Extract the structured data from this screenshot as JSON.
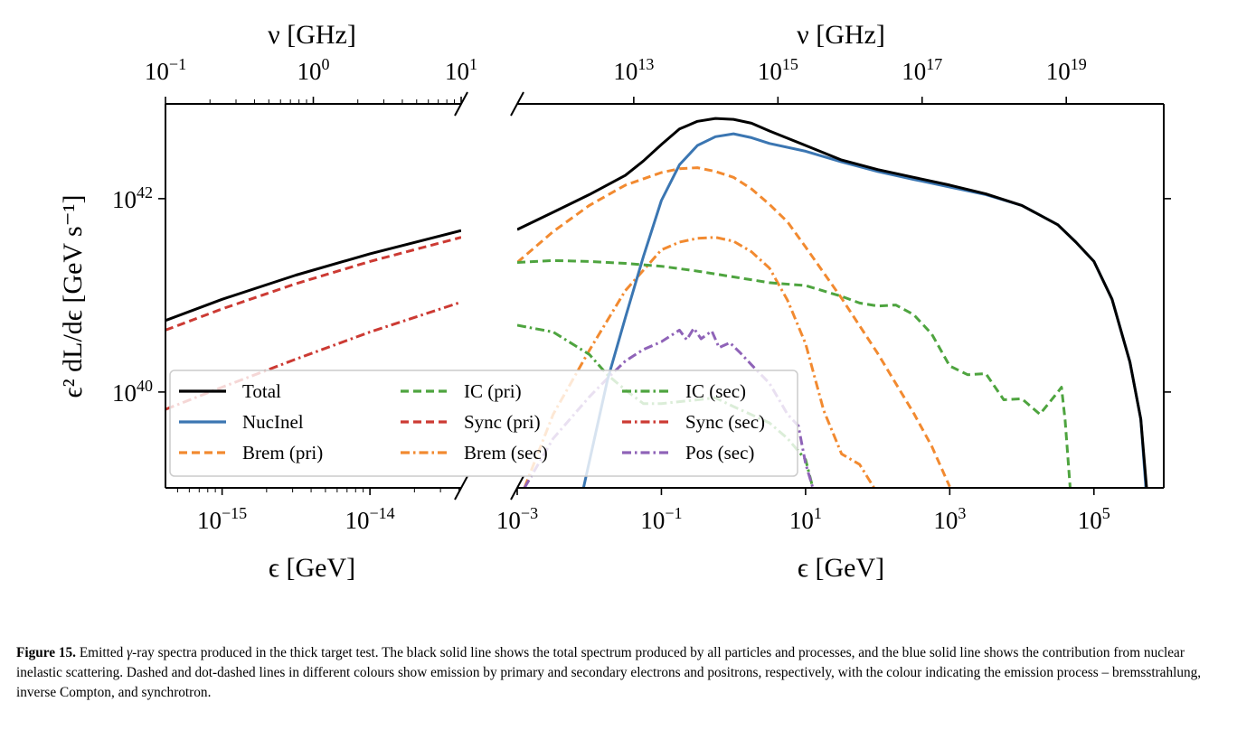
{
  "chart_data": {
    "type": "line",
    "xscale": "log",
    "yscale": "log",
    "broken_x_axis": true,
    "grid": false,
    "legend_placement": "lower-left",
    "xlabel": "ϵ [GeV]",
    "ylabel": "ϵ² dL/dϵ [GeV s⁻¹]",
    "top_xlabel": "ν [GHz]",
    "ylim": [
      1.02e+39,
      9.55e+42
    ],
    "yticks": [
      {
        "value": 1e+40,
        "label": {
          "base": "10",
          "exp": "40"
        }
      },
      {
        "value": 1e+42,
        "label": {
          "base": "10",
          "exp": "42"
        }
      }
    ],
    "legend": [
      {
        "name": "Total",
        "color": "#000000",
        "style": "solid"
      },
      {
        "name": "NucInel",
        "color": "#3b76b2",
        "style": "solid"
      },
      {
        "name": "Brem (pri)",
        "color": "#f28a30",
        "style": "dashed"
      },
      {
        "name": "IC (pri)",
        "color": "#4ea43f",
        "style": "dashed"
      },
      {
        "name": "Sync (pri)",
        "color": "#cc3a33",
        "style": "dashed"
      },
      {
        "name": "Brem (sec)",
        "color": "#f28a30",
        "style": "dashdot"
      },
      {
        "name": "IC (sec)",
        "color": "#4ea43f",
        "style": "dashdot"
      },
      {
        "name": "Sync (sec)",
        "color": "#cc3a33",
        "style": "dashdot"
      },
      {
        "name": "Pos (sec)",
        "color": "#8f63b8",
        "style": "dashdot"
      }
    ],
    "panels": [
      {
        "xlim": [
          4.14e-16,
          4.14e-14
        ],
        "top_xlim": [
          0.1,
          10
        ],
        "xticks": [
          {
            "value": 1e-15,
            "label": {
              "base": "10",
              "exp": "−15"
            }
          },
          {
            "value": 1e-14,
            "label": {
              "base": "10",
              "exp": "−14"
            }
          }
        ],
        "top_xticks": [
          {
            "value": 0.1,
            "label": {
              "base": "10",
              "exp": "−1"
            }
          },
          {
            "value": 1,
            "label": {
              "base": "10",
              "exp": "0"
            }
          },
          {
            "value": 10,
            "label": {
              "base": "10",
              "exp": "1"
            }
          }
        ],
        "series": [
          {
            "name": "Total",
            "x": [
              4.14e-16,
              1e-15,
              3.16e-15,
              1e-14,
              4.14e-14
            ],
            "y": [
              5.5e+40,
              9.1e+40,
              1.62e+41,
              2.69e+41,
              4.68e+41
            ]
          },
          {
            "name": "Sync (pri)",
            "x": [
              4.14e-16,
              1e-15,
              3.16e-15,
              1e-14,
              4.14e-14
            ],
            "y": [
              4.37e+40,
              7.24e+40,
              1.32e+41,
              2.24e+41,
              3.98e+41
            ]
          },
          {
            "name": "Sync (sec)",
            "x": [
              4.14e-16,
              1e-15,
              3.16e-15,
              1e-14,
              4.14e-14
            ],
            "y": [
              6.61e+39,
              1.12e+40,
              2.19e+40,
              4.17e+40,
              8.51e+40
            ]
          }
        ]
      },
      {
        "xlim": [
          0.001,
          930000.0
        ],
        "top_xlim": [
          241800000000.0,
          2.25e+20
        ],
        "xticks": [
          {
            "value": 0.001,
            "label": {
              "base": "10",
              "exp": "−3"
            }
          },
          {
            "value": 0.1,
            "label": {
              "base": "10",
              "exp": "−1"
            }
          },
          {
            "value": 10.0,
            "label": {
              "base": "10",
              "exp": "1"
            }
          },
          {
            "value": 1000.0,
            "label": {
              "base": "10",
              "exp": "3"
            }
          },
          {
            "value": 100000.0,
            "label": {
              "base": "10",
              "exp": "5"
            }
          }
        ],
        "top_xticks": [
          {
            "value": 10000000000000.0,
            "label": {
              "base": "10",
              "exp": "13"
            }
          },
          {
            "value": 1000000000000000.0,
            "label": {
              "base": "10",
              "exp": "15"
            }
          },
          {
            "value": 1e+17,
            "label": {
              "base": "10",
              "exp": "17"
            }
          },
          {
            "value": 1e+19,
            "label": {
              "base": "10",
              "exp": "19"
            }
          }
        ],
        "series": [
          {
            "name": "Brem (pri)",
            "x": [
              0.001,
              0.00316,
              0.01,
              0.0316,
              0.1,
              0.178,
              0.316,
              0.562,
              1,
              1.78,
              3.16,
              5.62,
              10,
              31.6,
              100,
              316,
              562,
              1000
            ],
            "y": [
              2.19e+41,
              4.57e+41,
              8.51e+41,
              1.38e+42,
              1.86e+42,
              2.04e+42,
              2.09e+42,
              1.91e+42,
              1.66e+42,
              1.26e+42,
              8.71e+41,
              5.75e+41,
              3.16e+41,
              9.33e+40,
              2.51e+40,
              6.03e+39,
              2.75e+39,
              1.05e+39
            ]
          },
          {
            "name": "Brem (sec)",
            "x": [
              0.00126,
              0.00316,
              0.01,
              0.0316,
              0.1,
              0.178,
              0.316,
              0.562,
              1,
              1.78,
              3.16,
              5.62,
              10,
              17.8,
              31.6,
              56.2,
              89.1
            ],
            "y": [
              1.02e+39,
              5.89e+39,
              2.69e+40,
              1.12e+41,
              2.95e+41,
              3.55e+41,
              3.89e+41,
              3.98e+41,
              3.63e+41,
              2.82e+41,
              1.91e+41,
              8.91e+40,
              3.16e+40,
              6.46e+39,
              2.29e+39,
              1.78e+39,
              1.02e+39
            ]
          },
          {
            "name": "IC (pri)",
            "x": [
              0.001,
              0.00316,
              0.01,
              0.0316,
              0.1,
              0.316,
              1,
              3.16,
              10,
              31.6,
              56.2,
              100,
              178,
              316,
              562,
              1000,
              1780,
              3160,
              5620,
              10000.0,
              17800.0,
              31600.0,
              35500.0,
              39800.0,
              46800.0
            ],
            "y": [
              2.19e+41,
              2.29e+41,
              2.24e+41,
              2.14e+41,
              2e+41,
              1.78e+41,
              1.55e+41,
              1.35e+41,
              1.26e+41,
              9.77e+40,
              8.32e+40,
              7.76e+40,
              7.94e+40,
              6.31e+40,
              3.98e+40,
              1.86e+40,
              1.51e+40,
              1.55e+40,
              8.32e+39,
              8.51e+39,
              5.89e+39,
              1e+40,
              1.12e+40,
              5.13e+39,
              1.02e+39
            ]
          },
          {
            "name": "IC (sec)",
            "x": [
              0.001,
              0.00316,
              0.01,
              0.0178,
              0.0316,
              0.0562,
              0.1,
              0.316,
              0.562,
              1,
              3.16,
              5.62,
              10,
              12.6
            ],
            "y": [
              4.9e+40,
              4.17e+40,
              2.45e+40,
              1.51e+40,
              1.05e+40,
              7.59e+39,
              7.59e+39,
              8.32e+39,
              8.71e+39,
              7.08e+39,
              4.79e+39,
              3.31e+39,
              2e+39,
              1.02e+39
            ]
          },
          {
            "name": "Pos (sec)",
            "x": [
              0.00126,
              0.00316,
              0.01,
              0.0178,
              0.0316,
              0.0562,
              0.1,
              0.178,
              0.224,
              0.282,
              0.355,
              0.501,
              0.631,
              0.891,
              1.26,
              1.78,
              3.16,
              5.62,
              7.94,
              10,
              12.6
            ],
            "y": [
              1.02e+39,
              3.31e+39,
              8.91e+39,
              1.38e+40,
              2.09e+40,
              2.75e+40,
              3.31e+40,
              4.37e+40,
              3.47e+40,
              4.57e+40,
              3.55e+40,
              4.27e+40,
              2.88e+40,
              3.24e+40,
              2.51e+40,
              1.91e+40,
              1.23e+40,
              5.89e+39,
              4.47e+39,
              1.82e+39,
              1.02e+39
            ]
          },
          {
            "name": "NucInel",
            "x": [
              0.0083,
              0.0178,
              0.0316,
              0.0562,
              0.1,
              0.178,
              0.316,
              0.562,
              1,
              1.78,
              3.16,
              10,
              31.6,
              100,
              316,
              1000,
              3160,
              10000.0,
              31600.0,
              56200.0,
              100000.0,
              178000.0,
              316000.0,
              447000.0,
              525000.0
            ],
            "y": [
              1.02e+39,
              1.32e+40,
              5.89e+40,
              2.51e+41,
              9.55e+41,
              2.24e+42,
              3.55e+42,
              4.37e+42,
              4.68e+42,
              4.27e+42,
              3.72e+42,
              3.09e+42,
              2.4e+42,
              1.91e+42,
              1.58e+42,
              1.32e+42,
              1.1e+42,
              8.51e+41,
              5.37e+41,
              3.55e+41,
              2.24e+41,
              9.12e+40,
              2.04e+40,
              5.25e+39,
              1.02e+39
            ]
          },
          {
            "name": "Total",
            "x": [
              0.001,
              0.00316,
              0.01,
              0.0316,
              0.0562,
              0.1,
              0.178,
              0.316,
              0.562,
              1,
              1.78,
              3.16,
              10,
              31.6,
              100,
              316,
              1000,
              3160,
              10000.0,
              31600.0,
              56200.0,
              100000.0,
              178000.0,
              316000.0,
              447000.0,
              537000.0
            ],
            "y": [
              4.79e+41,
              7.24e+41,
              1.1e+42,
              1.74e+42,
              2.45e+42,
              3.63e+42,
              5.25e+42,
              6.31e+42,
              6.76e+42,
              6.61e+42,
              6.03e+42,
              5.01e+42,
              3.55e+42,
              2.51e+42,
              2e+42,
              1.66e+42,
              1.38e+42,
              1.12e+42,
              8.51e+41,
              5.37e+41,
              3.55e+41,
              2.24e+41,
              9.12e+40,
              2.04e+40,
              5.25e+39,
              1.02e+39
            ]
          }
        ]
      }
    ]
  },
  "caption": {
    "label": "Figure 15.",
    "text_before_gamma": " Emitted ",
    "gamma": "γ",
    "text_after_gamma": "-ray spectra produced in the thick target test. The black solid line shows the total spectrum produced by all particles and processes, and the blue solid line shows the contribution from nuclear inelastic scattering. Dashed and dot-dashed lines in different colours show emission by primary and secondary electrons and positrons, respectively, with the colour indicating the emission process – bremsstrahlung, inverse Compton, and synchrotron."
  }
}
